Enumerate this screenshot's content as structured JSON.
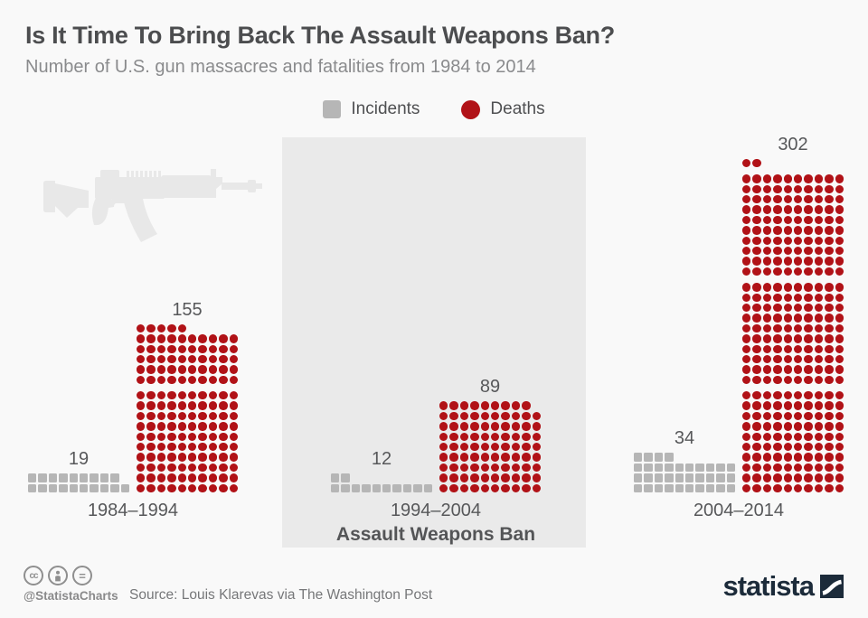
{
  "header": {
    "title": "Is It Time To Bring Back The Assault Weapons Ban?",
    "subtitle": "Number of U.S. gun massacres and fatalities from 1984 to 2014"
  },
  "legend": {
    "incidents_label": "Incidents",
    "deaths_label": "Deaths"
  },
  "chart_data": {
    "type": "pictogram",
    "unit_value": 1,
    "icon_shapes": {
      "incidents": "square",
      "deaths": "circle"
    },
    "icon_colors": {
      "incidents": "#b6b6b6",
      "deaths": "#b11217"
    },
    "highlight_panel_color": "#eaeaea",
    "groups": [
      {
        "period": "1984–1994",
        "incidents": 19,
        "deaths": 155
      },
      {
        "period": "1994–2004",
        "incidents": 12,
        "deaths": 89,
        "annotation": "Assault Weapons Ban",
        "highlighted": true
      },
      {
        "period": "2004–2014",
        "incidents": 34,
        "deaths": 302
      }
    ]
  },
  "decorations": {
    "rifle_silhouette": "assault-rifle-icon"
  },
  "footer": {
    "license_icons": [
      "cc",
      "by",
      "nd"
    ],
    "handle": "@StatistaCharts",
    "source": "Source: Louis Klarevas via The Washington Post",
    "brand": "statista"
  }
}
